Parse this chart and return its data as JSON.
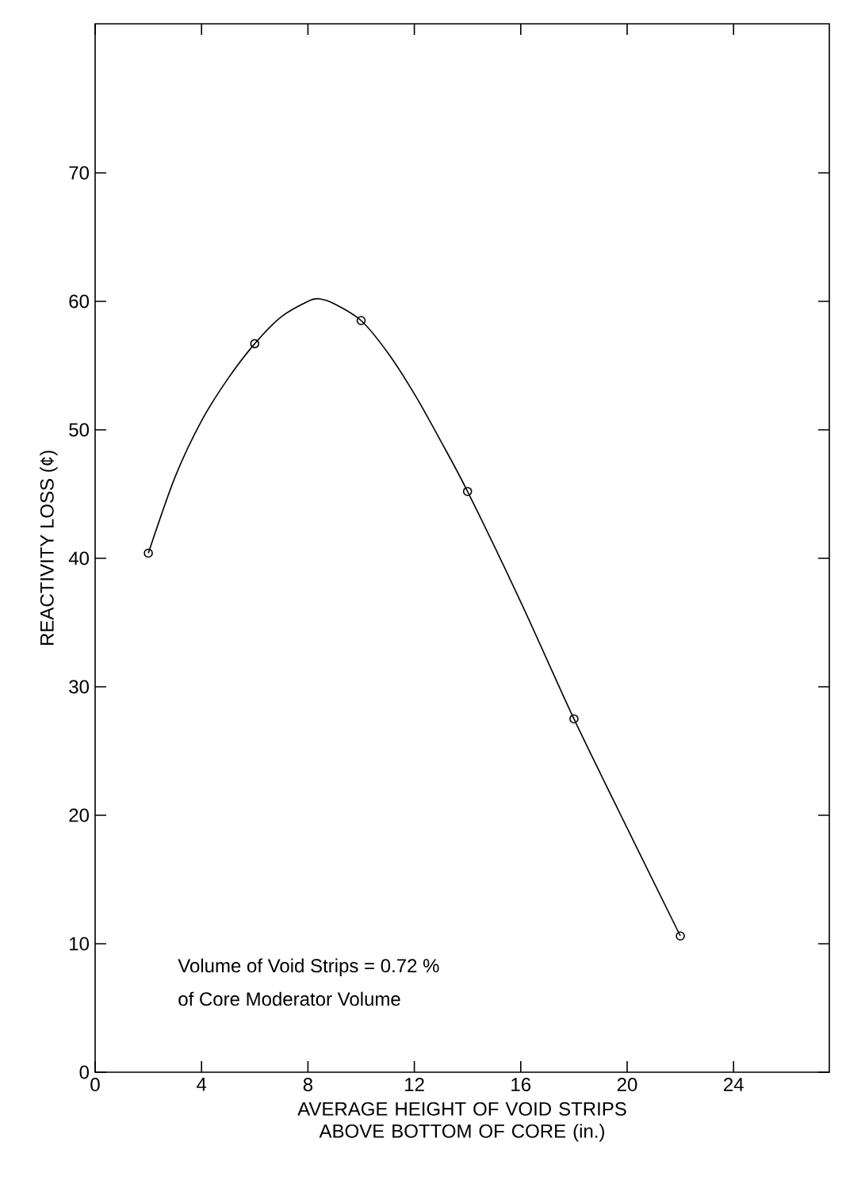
{
  "chart_data": {
    "type": "line",
    "xlabel": "AVERAGE HEIGHT OF VOID STRIPS ABOVE BOTTOM OF CORE (in.)",
    "ylabel": "REACTIVITY LOSS (¢)",
    "xlim": [
      0,
      27.6
    ],
    "ylim": [
      0,
      81.6
    ],
    "xticks": [
      0,
      4,
      8,
      12,
      16,
      20,
      24
    ],
    "yticks": [
      0,
      10,
      20,
      30,
      40,
      50,
      60,
      70
    ],
    "annotations": [
      "Volume of Void Strips = 0.72 %",
      "of Core Moderator Volume"
    ],
    "series": [
      {
        "type": "line",
        "color": "#000000",
        "marker": "none",
        "x": [
          2,
          3,
          4,
          5,
          6,
          7,
          8,
          8.4,
          9,
          10,
          11,
          12,
          13,
          14,
          16,
          18,
          20,
          22
        ],
        "values": [
          40.4,
          46.3,
          50.7,
          54,
          56.7,
          58.8,
          60,
          60.2,
          59.8,
          58.5,
          56,
          52.8,
          49.1,
          45.2,
          36.6,
          27.5,
          19,
          10.6
        ]
      },
      {
        "type": "scatter",
        "color": "#000000",
        "marker": "circle",
        "x": [
          2,
          6,
          10,
          14,
          18,
          22
        ],
        "values": [
          40.4,
          56.7,
          58.5,
          45.2,
          27.5,
          10.6
        ]
      }
    ]
  }
}
